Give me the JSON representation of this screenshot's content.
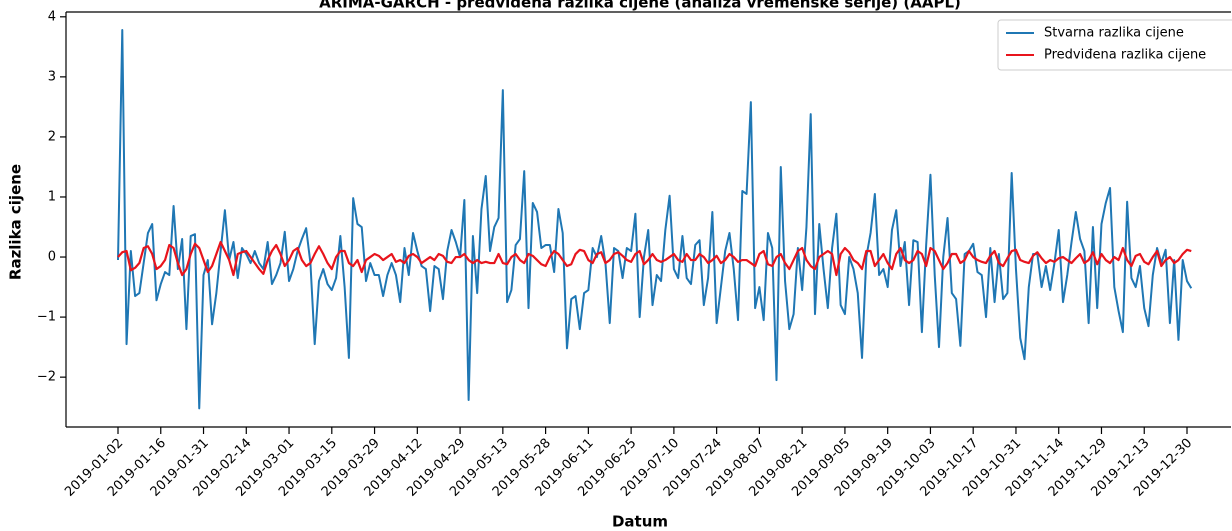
{
  "chart_data": {
    "type": "line",
    "title": "ARIMA-GARCH - predviđena razlika cijene (analiza vremenske serije) (AAPL)",
    "xlabel": "Datum",
    "ylabel": "Razlika cijene",
    "categories": [
      "2019-01-02",
      null,
      null,
      null,
      null,
      null,
      null,
      null,
      null,
      null,
      "2019-01-16",
      null,
      null,
      null,
      null,
      null,
      null,
      null,
      null,
      null,
      "2019-01-31",
      null,
      null,
      null,
      null,
      null,
      null,
      null,
      null,
      null,
      "2019-02-14",
      null,
      null,
      null,
      null,
      null,
      null,
      null,
      null,
      null,
      "2019-03-01",
      null,
      null,
      null,
      null,
      null,
      null,
      null,
      null,
      null,
      "2019-03-15",
      null,
      null,
      null,
      null,
      null,
      null,
      null,
      null,
      null,
      "2019-03-29",
      null,
      null,
      null,
      null,
      null,
      null,
      null,
      null,
      null,
      "2019-04-12",
      null,
      null,
      null,
      null,
      null,
      null,
      null,
      null,
      null,
      "2019-04-29",
      null,
      null,
      null,
      null,
      null,
      null,
      null,
      null,
      null,
      "2019-05-13",
      null,
      null,
      null,
      null,
      null,
      null,
      null,
      null,
      null,
      "2019-05-28",
      null,
      null,
      null,
      null,
      null,
      null,
      null,
      null,
      null,
      "2019-06-11",
      null,
      null,
      null,
      null,
      null,
      null,
      null,
      null,
      null,
      "2019-06-25",
      null,
      null,
      null,
      null,
      null,
      null,
      null,
      null,
      null,
      "2019-07-10",
      null,
      null,
      null,
      null,
      null,
      null,
      null,
      null,
      null,
      "2019-07-24",
      null,
      null,
      null,
      null,
      null,
      null,
      null,
      null,
      null,
      "2019-08-07",
      null,
      null,
      null,
      null,
      null,
      null,
      null,
      null,
      null,
      "2019-08-21",
      null,
      null,
      null,
      null,
      null,
      null,
      null,
      null,
      null,
      "2019-09-05",
      null,
      null,
      null,
      null,
      null,
      null,
      null,
      null,
      null,
      "2019-09-19",
      null,
      null,
      null,
      null,
      null,
      null,
      null,
      null,
      null,
      "2019-10-03",
      null,
      null,
      null,
      null,
      null,
      null,
      null,
      null,
      null,
      "2019-10-17",
      null,
      null,
      null,
      null,
      null,
      null,
      null,
      null,
      null,
      "2019-10-31",
      null,
      null,
      null,
      null,
      null,
      null,
      null,
      null,
      null,
      "2019-11-14",
      null,
      null,
      null,
      null,
      null,
      null,
      null,
      null,
      null,
      "2019-11-29",
      null,
      null,
      null,
      null,
      null,
      null,
      null,
      null,
      null,
      "2019-12-13",
      null,
      null,
      null,
      null,
      null,
      null,
      null,
      null,
      null,
      "2019-12-30",
      null
    ],
    "series": [
      {
        "name": "Stvarna razlika cijene",
        "color": "#1f77b4",
        "values": [
          -0.05,
          3.78,
          -1.45,
          0.1,
          -0.65,
          -0.6,
          -0.1,
          0.4,
          0.55,
          -0.72,
          -0.45,
          -0.25,
          -0.3,
          0.85,
          -0.2,
          0.3,
          -1.2,
          0.35,
          0.38,
          -2.52,
          -0.3,
          -0.05,
          -1.12,
          -0.6,
          0.1,
          0.78,
          -0.05,
          0.25,
          -0.35,
          0.15,
          0.05,
          -0.1,
          0.1,
          -0.1,
          -0.2,
          0.25,
          -0.45,
          -0.3,
          -0.1,
          0.42,
          -0.4,
          -0.2,
          0.1,
          0.3,
          0.48,
          -0.1,
          -1.45,
          -0.4,
          -0.2,
          -0.45,
          -0.55,
          -0.35,
          0.35,
          -0.5,
          -1.68,
          0.98,
          0.55,
          0.5,
          -0.4,
          -0.1,
          -0.3,
          -0.3,
          -0.65,
          -0.3,
          -0.1,
          -0.3,
          -0.75,
          0.15,
          -0.3,
          0.4,
          0.1,
          -0.15,
          -0.2,
          -0.9,
          -0.15,
          -0.2,
          -0.7,
          0.1,
          0.45,
          0.25,
          0.0,
          0.95,
          -2.38,
          0.35,
          -0.6,
          0.8,
          1.35,
          0.1,
          0.5,
          0.65,
          2.78,
          -0.75,
          -0.55,
          0.2,
          0.3,
          1.43,
          -0.85,
          0.9,
          0.75,
          0.15,
          0.2,
          0.2,
          -0.25,
          0.8,
          0.4,
          -1.52,
          -0.7,
          -0.65,
          -1.2,
          -0.6,
          -0.55,
          0.15,
          0.0,
          0.35,
          -0.1,
          -1.1,
          0.15,
          0.1,
          -0.35,
          0.15,
          0.1,
          0.72,
          -1.0,
          0.0,
          0.45,
          -0.8,
          -0.3,
          -0.4,
          0.45,
          1.02,
          -0.2,
          -0.35,
          0.35,
          -0.35,
          -0.45,
          0.2,
          0.28,
          -0.8,
          -0.35,
          0.75,
          -1.1,
          -0.5,
          0.1,
          0.4,
          -0.2,
          -1.05,
          1.1,
          1.05,
          2.58,
          -0.85,
          -0.5,
          -1.05,
          0.4,
          0.15,
          -2.05,
          1.5,
          -0.4,
          -1.2,
          -0.95,
          0.15,
          -0.55,
          0.5,
          2.38,
          -0.95,
          0.55,
          -0.2,
          -0.85,
          0.15,
          0.72,
          -0.8,
          -0.95,
          0.0,
          -0.2,
          -0.6,
          -1.68,
          0.0,
          0.4,
          1.05,
          -0.3,
          -0.2,
          -0.5,
          0.45,
          0.78,
          -0.15,
          0.25,
          -0.8,
          0.28,
          0.25,
          -1.25,
          0.2,
          1.37,
          -0.3,
          -1.5,
          0.0,
          0.65,
          -0.6,
          -0.7,
          -1.48,
          0.05,
          0.1,
          0.22,
          -0.25,
          -0.3,
          -1.0,
          0.15,
          -0.75,
          0.05,
          -0.7,
          -0.6,
          1.4,
          -0.2,
          -1.35,
          -1.7,
          -0.5,
          0.05,
          0.05,
          -0.5,
          -0.15,
          -0.55,
          -0.1,
          0.45,
          -0.75,
          -0.3,
          0.25,
          0.75,
          0.3,
          0.1,
          -1.1,
          0.5,
          -0.85,
          0.55,
          0.9,
          1.15,
          -0.5,
          -0.9,
          -1.25,
          0.92,
          -0.35,
          -0.5,
          -0.15,
          -0.85,
          -1.15,
          -0.3,
          0.15,
          -0.1,
          0.12,
          -1.1,
          -0.05,
          -1.38,
          -0.05,
          -0.4,
          -0.52
        ]
      },
      {
        "name": "Predviđena razlika cijene",
        "color": "#e8141c",
        "values": [
          0.0,
          0.08,
          0.1,
          -0.22,
          -0.18,
          -0.1,
          0.15,
          0.18,
          0.05,
          -0.2,
          -0.15,
          -0.05,
          0.2,
          0.15,
          -0.1,
          -0.3,
          -0.2,
          0.05,
          0.22,
          0.15,
          -0.05,
          -0.25,
          -0.15,
          0.05,
          0.25,
          0.1,
          -0.05,
          -0.3,
          0.05,
          0.08,
          0.1,
          0.0,
          -0.1,
          -0.2,
          -0.28,
          -0.05,
          0.1,
          0.2,
          0.05,
          -0.15,
          -0.05,
          0.1,
          0.15,
          -0.05,
          -0.15,
          -0.1,
          0.05,
          0.18,
          0.05,
          -0.1,
          -0.2,
          0.0,
          0.1,
          0.1,
          -0.1,
          -0.15,
          -0.05,
          -0.25,
          -0.05,
          0.0,
          0.05,
          0.02,
          -0.05,
          0.0,
          0.05,
          -0.08,
          -0.05,
          -0.1,
          0.02,
          0.05,
          0.0,
          -0.1,
          -0.05,
          0.0,
          -0.05,
          0.05,
          0.02,
          -0.08,
          -0.1,
          0.0,
          0.0,
          0.05,
          -0.05,
          -0.1,
          -0.05,
          -0.1,
          -0.08,
          -0.1,
          -0.1,
          0.05,
          -0.1,
          -0.12,
          0.0,
          0.05,
          -0.05,
          -0.1,
          0.05,
          0.02,
          -0.05,
          -0.12,
          -0.15,
          0.0,
          0.1,
          0.05,
          -0.05,
          -0.15,
          -0.12,
          0.05,
          0.12,
          0.1,
          -0.05,
          -0.1,
          0.05,
          0.08,
          -0.1,
          -0.05,
          0.05,
          0.08,
          0.02,
          -0.05,
          -0.08,
          0.05,
          0.1,
          -0.12,
          -0.05,
          0.05,
          -0.05,
          -0.08,
          -0.05,
          0.0,
          0.05,
          -0.05,
          -0.08,
          0.05,
          -0.05,
          -0.05,
          0.05,
          0.0,
          -0.1,
          -0.05,
          0.02,
          -0.1,
          -0.05,
          0.05,
          0.0,
          -0.08,
          -0.05,
          -0.05,
          -0.1,
          -0.15,
          0.05,
          0.1,
          -0.12,
          -0.15,
          0.0,
          0.05,
          -0.1,
          -0.2,
          -0.05,
          0.1,
          0.15,
          -0.05,
          -0.15,
          -0.2,
          0.0,
          0.05,
          0.1,
          0.05,
          -0.3,
          0.05,
          0.15,
          0.08,
          -0.05,
          -0.1,
          -0.2,
          0.1,
          0.1,
          -0.15,
          -0.05,
          0.05,
          -0.1,
          -0.2,
          0.05,
          0.15,
          -0.05,
          -0.1,
          -0.05,
          0.1,
          0.05,
          -0.15,
          0.15,
          0.1,
          -0.05,
          -0.2,
          -0.1,
          0.05,
          0.05,
          -0.1,
          -0.05,
          0.1,
          0.0,
          -0.05,
          -0.08,
          -0.1,
          0.02,
          0.1,
          -0.1,
          -0.15,
          -0.02,
          0.1,
          0.12,
          -0.05,
          -0.08,
          -0.1,
          0.02,
          0.08,
          -0.02,
          -0.1,
          -0.05,
          -0.08,
          -0.02,
          0.0,
          -0.05,
          -0.1,
          -0.02,
          0.05,
          -0.1,
          -0.05,
          0.08,
          -0.12,
          0.05,
          -0.05,
          -0.1,
          0.0,
          -0.05,
          0.15,
          -0.05,
          -0.15,
          0.02,
          0.05,
          -0.08,
          -0.12,
          0.0,
          0.1,
          -0.15,
          -0.05,
          0.0,
          -0.1,
          -0.05,
          0.05,
          0.12,
          0.1
        ]
      }
    ],
    "ylim": [
      -2.83,
      4.08
    ],
    "yticks": [
      {
        "value": -2,
        "label": "−2"
      },
      {
        "value": -1,
        "label": "−1"
      },
      0,
      1,
      2,
      3,
      4
    ],
    "grid": false,
    "legend": "upper right"
  }
}
